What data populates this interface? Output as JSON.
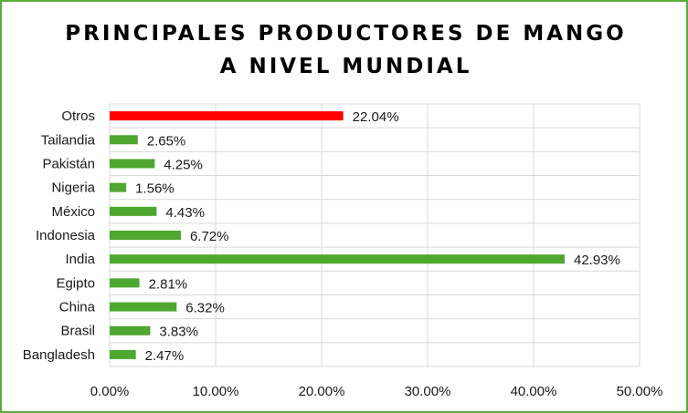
{
  "chart_data": {
    "type": "bar",
    "orientation": "horizontal",
    "title_line1": "PRINCIPALES PRODUCTORES DE MANGO",
    "title_line2": "A NIVEL MUNDIAL",
    "categories": [
      "Otros",
      "Tailandia",
      "Pakistán",
      "Nigeria",
      "México",
      "Indonesia",
      "India",
      "Egipto",
      "China",
      "Brasil",
      "Bangladesh"
    ],
    "values": [
      22.04,
      2.65,
      4.25,
      1.56,
      4.43,
      6.72,
      42.93,
      2.81,
      6.32,
      3.83,
      2.47
    ],
    "value_labels": [
      "22.04%",
      "2.65%",
      "4.25%",
      "1.56%",
      "4.43%",
      "6.72%",
      "42.93%",
      "2.81%",
      "6.32%",
      "3.83%",
      "2.47%"
    ],
    "highlight_index": 0,
    "xlim": [
      0,
      50
    ],
    "x_ticks": [
      0,
      10,
      20,
      30,
      40,
      50
    ],
    "x_tick_labels": [
      "0.00%",
      "10.00%",
      "20.00%",
      "30.00%",
      "40.00%",
      "50.00%"
    ],
    "grid": true,
    "colors": {
      "bar": "#4ea72e",
      "highlight": "#ff0000",
      "grid": "#d9d9d9",
      "border": "#5aae3c"
    }
  }
}
